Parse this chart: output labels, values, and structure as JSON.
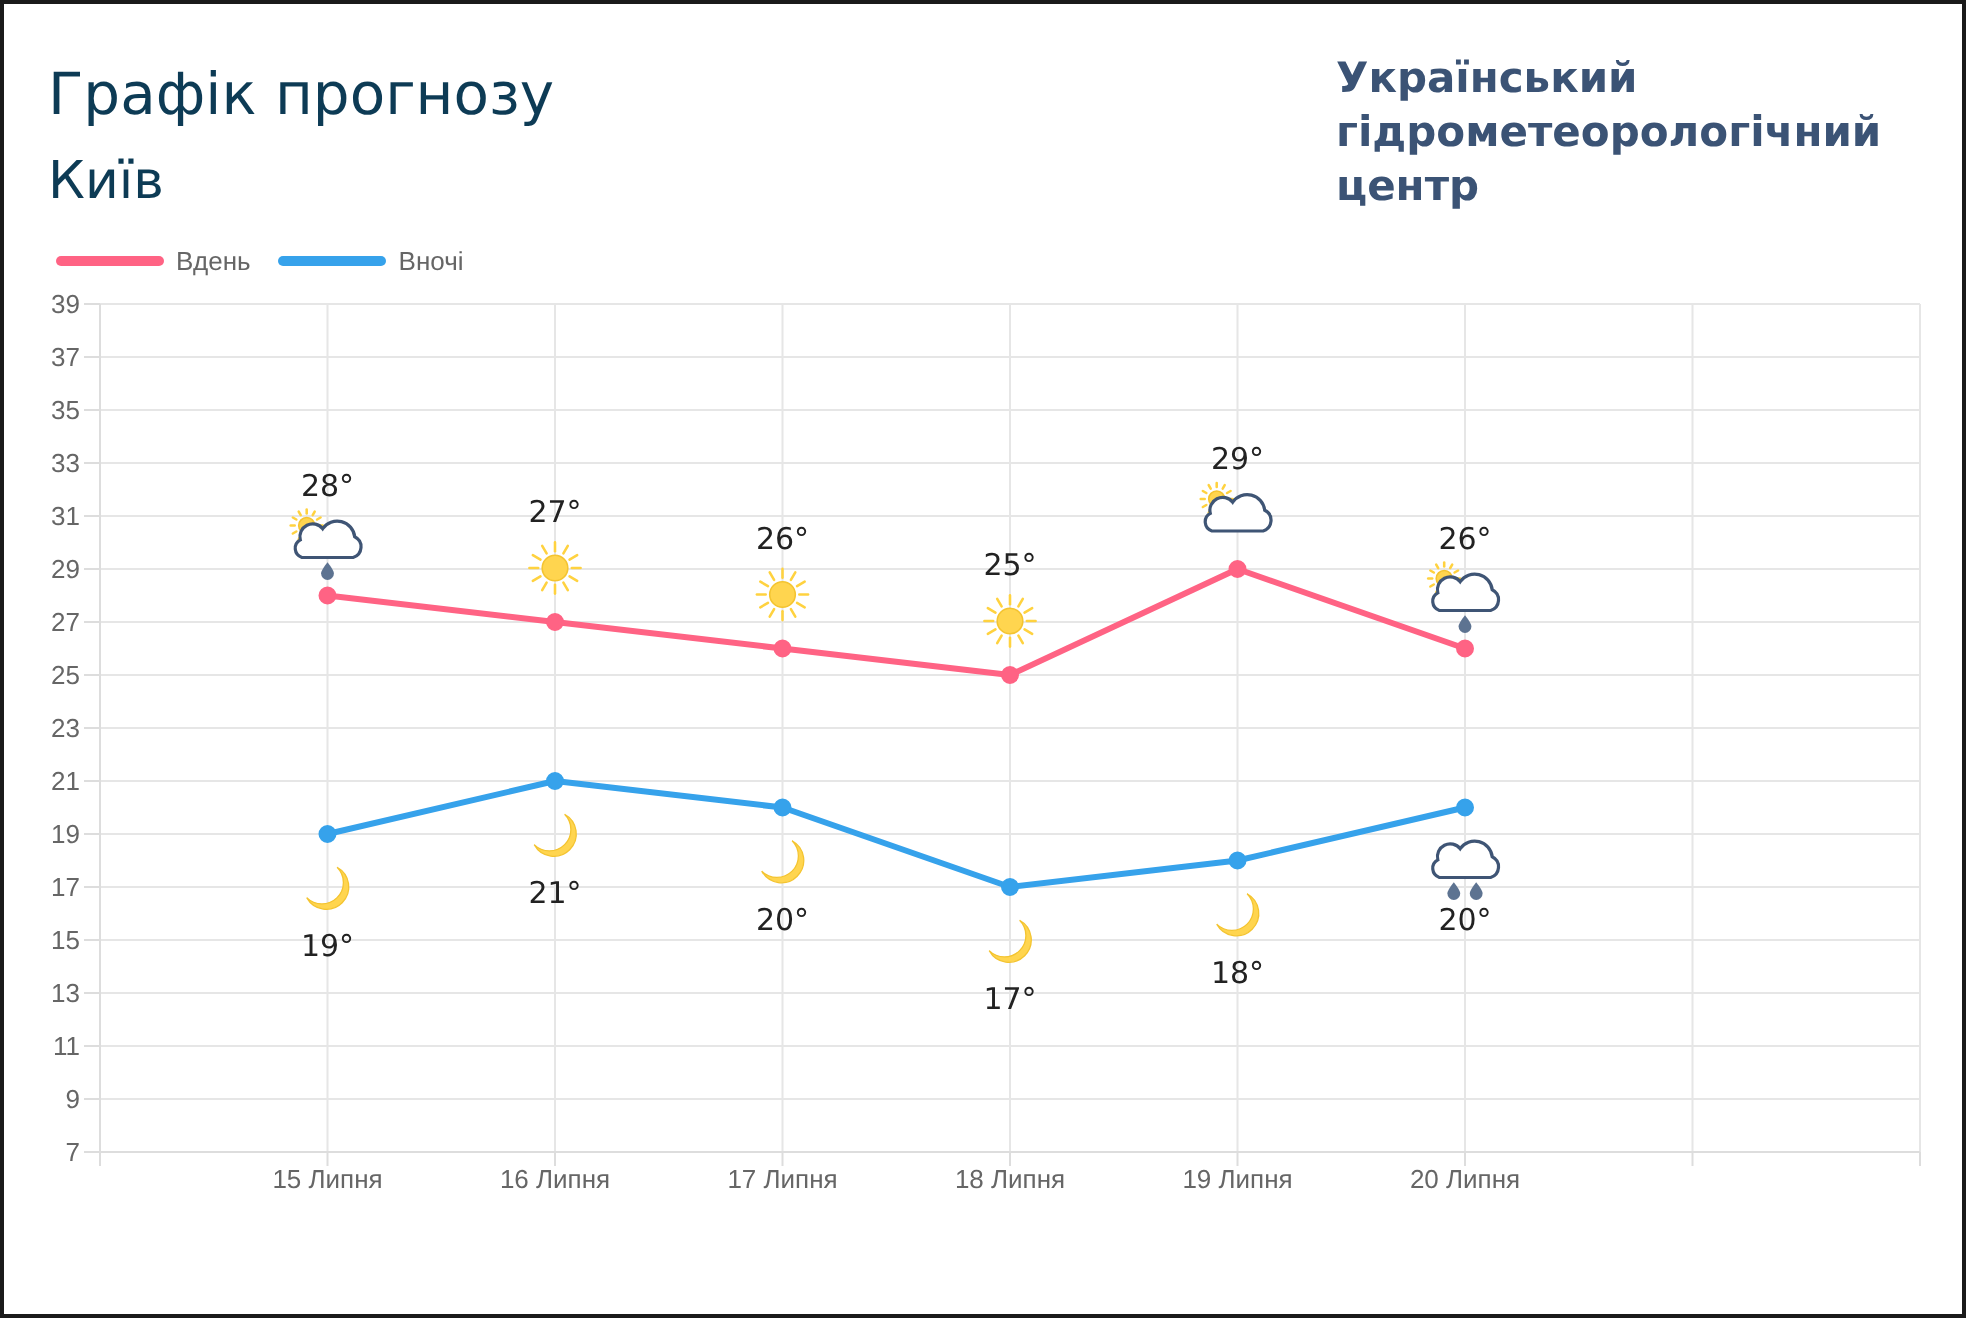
{
  "chart_data": {
    "type": "line",
    "title": "Графік прогнозу",
    "subtitle": "Київ",
    "annotations": [
      "Український гідрометеорологічний центр"
    ],
    "categories": [
      null,
      "15 Липня",
      "16 Липня",
      "17 Липня",
      "18 Липня",
      "19 Липня",
      "20 Липня",
      null,
      null
    ],
    "series": [
      {
        "name": "Вдень",
        "color": "#ff6384",
        "values": [
          null,
          28,
          27,
          26,
          25,
          29,
          26,
          null,
          null
        ],
        "value_labels": [
          null,
          "28°",
          "27°",
          "26°",
          "25°",
          "29°",
          "26°",
          null,
          null
        ]
      },
      {
        "name": "Вночі",
        "color": "#36a2eb",
        "values": [
          null,
          19,
          21,
          20,
          17,
          18,
          20,
          null,
          null
        ],
        "value_labels": [
          null,
          "19°",
          "21°",
          "20°",
          "17°",
          "18°",
          "20°",
          null,
          null
        ]
      }
    ],
    "ylim": [
      7,
      39
    ],
    "yticks": [
      7,
      9,
      11,
      13,
      15,
      17,
      19,
      21,
      23,
      25,
      27,
      29,
      31,
      33,
      35,
      37,
      39
    ],
    "grid": true,
    "legend": "top left",
    "marker": "circle",
    "line_style": "solid"
  }
}
